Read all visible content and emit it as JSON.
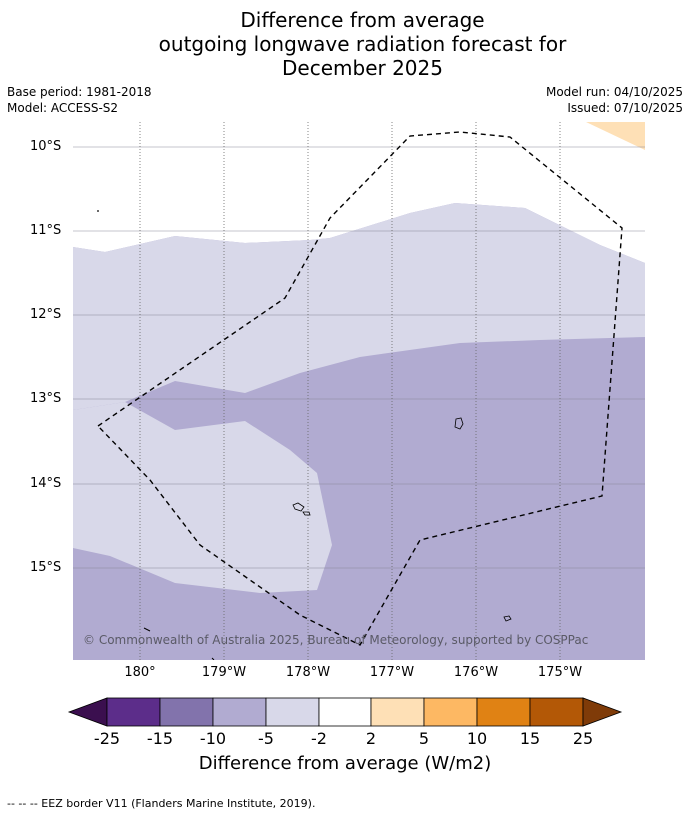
{
  "title": {
    "line1": "Difference from average",
    "line2": "outgoing longwave radiation forecast for",
    "line3": "December 2025"
  },
  "meta": {
    "base_period": "Base period: 1981-2018",
    "model": "Model: ACCESS-S2",
    "model_run": "Model run: 04/10/2025",
    "issued": "Issued: 07/10/2025"
  },
  "map": {
    "y_labels": [
      "10°S",
      "11°S",
      "12°S",
      "13°S",
      "14°S",
      "15°S"
    ],
    "x_labels": [
      "180°",
      "179°W",
      "178°W",
      "177°W",
      "176°W",
      "175°W"
    ],
    "copyright": "© Commonwealth of Australia 2025, Bureau of Meteorology, supported by COSPPac"
  },
  "colorbar": {
    "tick_labels": [
      "-25",
      "-15",
      "-10",
      "-5",
      "-2",
      "2",
      "5",
      "10",
      "15",
      "25"
    ],
    "colors": {
      "lt_-25": "#3b0f4f",
      "m25_m15": "#5c2d8a",
      "m15_m10": "#8273ac",
      "m10_m5": "#b1abd1",
      "m5_m2": "#d8d8e9",
      "m2_p2": "#ffffff",
      "p2_p5": "#fee0b6",
      "p5_p10": "#fdb863",
      "p10_p15": "#e08214",
      "p15_p25": "#b35806",
      "gt_25": "#7f3b08"
    },
    "title": "Difference from average (W/m2)"
  },
  "legend": {
    "text": "--  --  -- EEZ border V11 (Flanders Marine Institute, 2019)."
  }
}
